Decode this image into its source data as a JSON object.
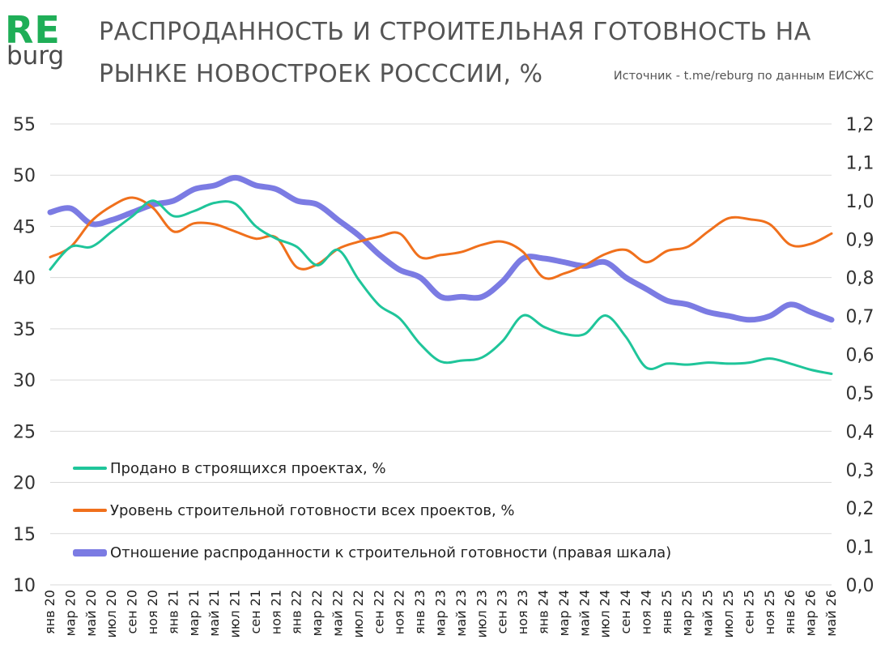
{
  "logo": {
    "re": "RE",
    "burg": "burg"
  },
  "title_line1": "РАСПРОДАННОСТЬ И СТРОИТЕЛЬНАЯ ГОТОВНОСТЬ НА",
  "title_line2": "РЫНКЕ НОВОСТРОЕК РОСССИИ, %",
  "source": "Источник - t.me/reburg по данным ЕИСЖС",
  "chart_data": {
    "type": "line",
    "title": "РАСПРОДАННОСТЬ И СТРОИТЕЛЬНАЯ ГОТОВНОСТЬ НА РЫНКЕ НОВОСТРОЕК РОСССИИ, %",
    "x_tick_labels": [
      "янв 20",
      "мар 20",
      "май 20",
      "июл 20",
      "сен 20",
      "ноя 20",
      "янв 21",
      "мар 21",
      "май 21",
      "июл 21",
      "сен 21",
      "ноя 21",
      "янв 22",
      "мар 22",
      "май 22",
      "июл 22",
      "сен 22",
      "ноя 22",
      "янв 23",
      "мар 23",
      "май 23",
      "июл 23",
      "сен 23",
      "ноя 23",
      "янв 24",
      "мар 24",
      "май 24",
      "июл 24",
      "сен 24",
      "ноя 24",
      "янв 25",
      "мар 25",
      "май 25",
      "июл 25",
      "сен 25",
      "ноя 25",
      "янв 26",
      "мар 26",
      "май 26"
    ],
    "x": [
      "янв 20",
      "мар 20",
      "май 20",
      "июл 20",
      "сен 20",
      "ноя 20",
      "янв 21",
      "мар 21",
      "май 21",
      "июл 21",
      "сен 21",
      "ноя 21",
      "янв 22",
      "мар 22",
      "май 22",
      "июл 22",
      "сен 22",
      "ноя 22",
      "янв 23",
      "мар 23",
      "май 23",
      "июл 23",
      "сен 23",
      "ноя 23",
      "янв 24",
      "мар 24",
      "май 24",
      "июл 24",
      "сен 24",
      "ноя 24",
      "янв 25",
      "мар 25",
      "май 25",
      "июл 25",
      "сен 25",
      "ноя 25",
      "янв 26",
      "мар 26",
      "май 26"
    ],
    "y_left_ticks": [
      "55",
      "50",
      "45",
      "40",
      "35",
      "30",
      "25",
      "20",
      "15",
      "10"
    ],
    "y_left_lim": [
      10,
      55
    ],
    "y_right_ticks": [
      "1,2",
      "1,1",
      "1,0",
      "0,9",
      "0,8",
      "0,7",
      "0,6",
      "0,5",
      "0,4",
      "0,3",
      "0,2",
      "0,1",
      "0,0"
    ],
    "y_right_lim": [
      0.0,
      1.2
    ],
    "grid": true,
    "legend_position": "lower-left inside plot",
    "series": [
      {
        "name": "Продано в строящихся проектах, %",
        "axis": "left",
        "color": "#1fc59a",
        "values": [
          40.8,
          43.0,
          43.0,
          44.5,
          46.0,
          47.5,
          46.0,
          46.5,
          47.3,
          47.2,
          45.0,
          43.8,
          43.0,
          41.2,
          42.7,
          39.8,
          37.3,
          36.0,
          33.5,
          31.8,
          31.9,
          32.2,
          33.8,
          36.3,
          35.2,
          34.5,
          34.5,
          36.3,
          34.2,
          31.2,
          31.6,
          31.5,
          31.7,
          31.6,
          31.7,
          32.1,
          31.6,
          31.0,
          30.6
        ]
      },
      {
        "name": "Уровень строительной готовности всех проектов, %",
        "axis": "left",
        "color": "#f0701c",
        "values": [
          42.0,
          43.0,
          45.5,
          47.0,
          47.8,
          46.8,
          44.5,
          45.3,
          45.2,
          44.5,
          43.8,
          43.9,
          41.0,
          41.3,
          42.8,
          43.5,
          44.0,
          44.3,
          42.0,
          42.2,
          42.5,
          43.2,
          43.5,
          42.5,
          40.0,
          40.4,
          41.2,
          42.3,
          42.7,
          41.5,
          42.6,
          43.0,
          44.5,
          45.8,
          45.7,
          45.2,
          43.2,
          43.3,
          44.3
        ]
      },
      {
        "name": "Отношение распроданности к строительной готовности (правая шкала)",
        "axis": "right",
        "color": "#7b7be3",
        "values": [
          0.97,
          0.98,
          0.94,
          0.95,
          0.97,
          0.99,
          1.0,
          1.03,
          1.04,
          1.06,
          1.04,
          1.03,
          1.0,
          0.99,
          0.95,
          0.91,
          0.86,
          0.82,
          0.8,
          0.75,
          0.75,
          0.75,
          0.79,
          0.85,
          0.85,
          0.84,
          0.83,
          0.84,
          0.8,
          0.77,
          0.74,
          0.73,
          0.71,
          0.7,
          0.69,
          0.7,
          0.73,
          0.71,
          0.69
        ]
      }
    ]
  }
}
